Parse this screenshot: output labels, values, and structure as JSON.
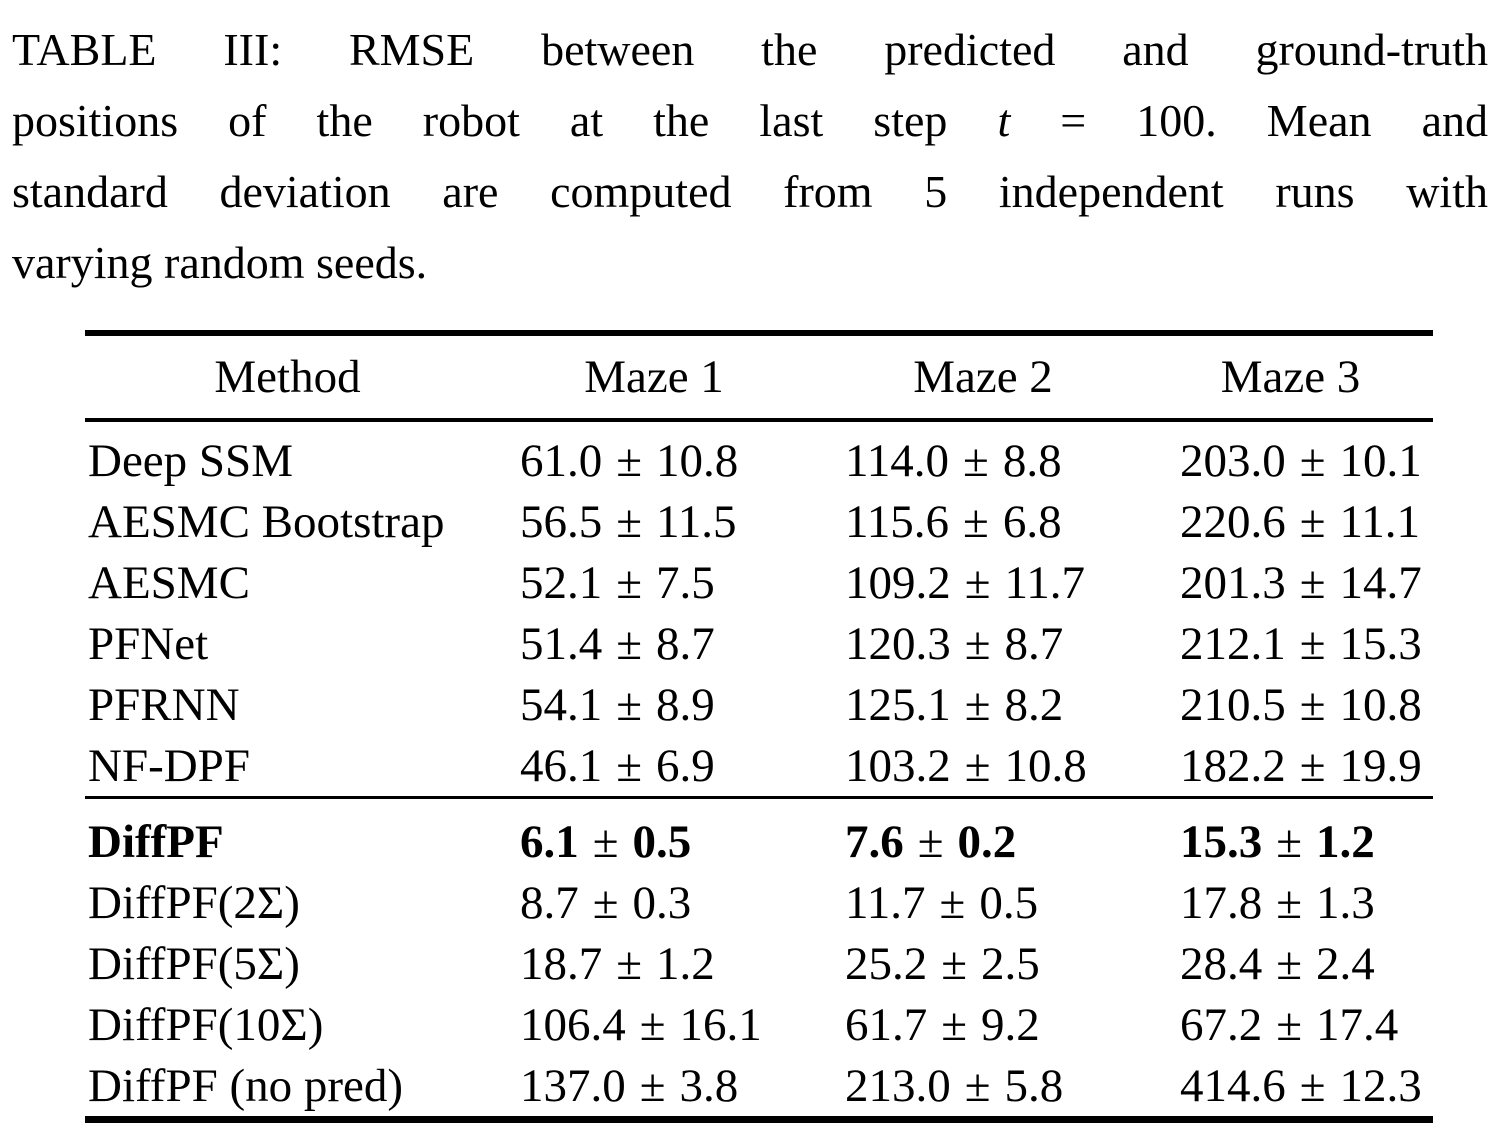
{
  "caption": {
    "lines": [
      {
        "pre": "TABLE III: RMSE between the predicted and ground-truth"
      },
      {
        "pre": "positions of the robot at the last step ",
        "math_var": "t",
        "post": " = 100. Mean and"
      },
      {
        "pre": "standard deviation are computed from 5 independent runs with"
      },
      {
        "pre": "varying random seeds."
      }
    ]
  },
  "table": {
    "headers": [
      "Method",
      "Maze 1",
      "Maze 2",
      "Maze 3"
    ],
    "pm_symbol": "±",
    "groups": [
      {
        "rows": [
          {
            "method": "Deep SSM",
            "bold": false,
            "values": [
              {
                "mean": "61.0",
                "std": "10.8"
              },
              {
                "mean": "114.0",
                "std": "8.8"
              },
              {
                "mean": "203.0",
                "std": "10.1"
              }
            ]
          },
          {
            "method": "AESMC Bootstrap",
            "bold": false,
            "values": [
              {
                "mean": "56.5",
                "std": "11.5"
              },
              {
                "mean": "115.6",
                "std": "6.8"
              },
              {
                "mean": "220.6",
                "std": "11.1"
              }
            ]
          },
          {
            "method": "AESMC",
            "bold": false,
            "values": [
              {
                "mean": "52.1",
                "std": "7.5"
              },
              {
                "mean": "109.2",
                "std": "11.7"
              },
              {
                "mean": "201.3",
                "std": "14.7"
              }
            ]
          },
          {
            "method": "PFNet",
            "bold": false,
            "values": [
              {
                "mean": "51.4",
                "std": "8.7"
              },
              {
                "mean": "120.3",
                "std": "8.7"
              },
              {
                "mean": "212.1",
                "std": "15.3"
              }
            ]
          },
          {
            "method": "PFRNN",
            "bold": false,
            "values": [
              {
                "mean": "54.1",
                "std": "8.9"
              },
              {
                "mean": "125.1",
                "std": "8.2"
              },
              {
                "mean": "210.5",
                "std": "10.8"
              }
            ]
          },
          {
            "method": "NF-DPF",
            "bold": false,
            "values": [
              {
                "mean": "46.1",
                "std": "6.9"
              },
              {
                "mean": "103.2",
                "std": "10.8"
              },
              {
                "mean": "182.2",
                "std": "19.9"
              }
            ]
          }
        ]
      },
      {
        "rows": [
          {
            "method": "DiffPF",
            "bold": true,
            "values": [
              {
                "mean": "6.1",
                "std": "0.5"
              },
              {
                "mean": "7.6",
                "std": "0.2"
              },
              {
                "mean": "15.3",
                "std": "1.2"
              }
            ]
          },
          {
            "method": "DiffPF(2Σ)",
            "bold": false,
            "values": [
              {
                "mean": "8.7",
                "std": "0.3"
              },
              {
                "mean": "11.7",
                "std": "0.5"
              },
              {
                "mean": "17.8",
                "std": "1.3"
              }
            ]
          },
          {
            "method": "DiffPF(5Σ)",
            "bold": false,
            "values": [
              {
                "mean": "18.7",
                "std": "1.2"
              },
              {
                "mean": "25.2",
                "std": "2.5"
              },
              {
                "mean": "28.4",
                "std": "2.4"
              }
            ]
          },
          {
            "method": "DiffPF(10Σ)",
            "bold": false,
            "values": [
              {
                "mean": "106.4",
                "std": "16.1"
              },
              {
                "mean": "61.7",
                "std": "9.2"
              },
              {
                "mean": "67.2",
                "std": "17.4"
              }
            ]
          },
          {
            "method": "DiffPF (no pred)",
            "bold": false,
            "values": [
              {
                "mean": "137.0",
                "std": "3.8"
              },
              {
                "mean": "213.0",
                "std": "5.8"
              },
              {
                "mean": "414.6",
                "std": "12.3"
              }
            ]
          }
        ]
      }
    ]
  }
}
